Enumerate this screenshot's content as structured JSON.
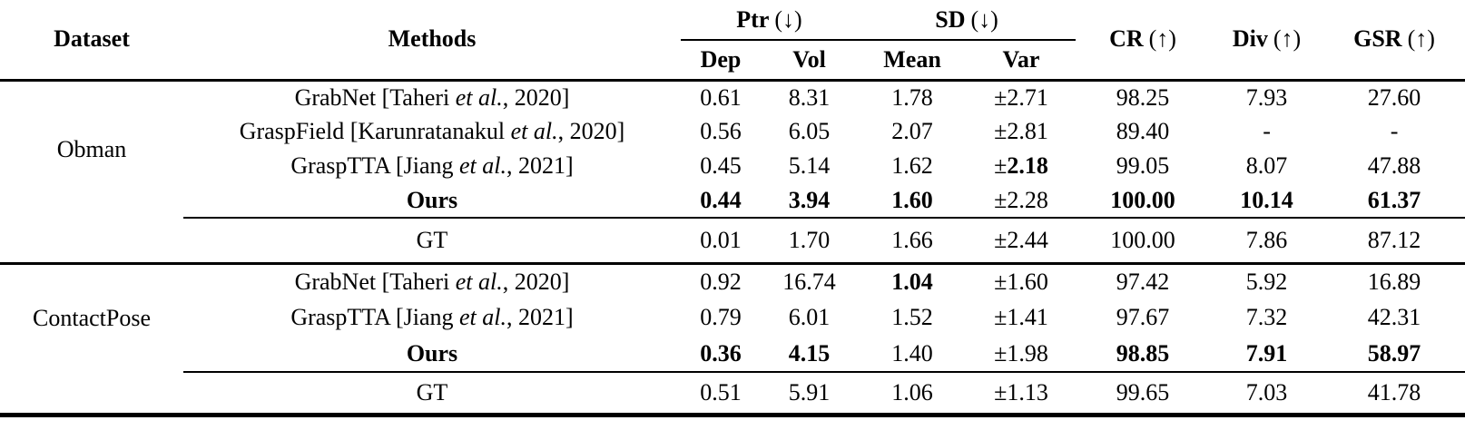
{
  "header": {
    "dataset": "Dataset",
    "methods": "Methods",
    "ptr": {
      "name": "Ptr",
      "dir": "(↓)",
      "sub1": "Dep",
      "sub2": "Vol"
    },
    "sd": {
      "name": "SD",
      "dir": "(↓)",
      "sub1": "Mean",
      "sub2": "Var"
    },
    "cr": {
      "name": "CR",
      "dir": "(↑)"
    },
    "div": {
      "name": "Div",
      "dir": "(↑)"
    },
    "gsr": {
      "name": "GSR",
      "dir": "(↑)"
    }
  },
  "sections": [
    {
      "dataset": "Obman",
      "rows": [
        {
          "m_pre": "GrabNet [Taheri ",
          "m_it": "et al.",
          "m_post": ", 2020]",
          "dep": "0.61",
          "vol": "8.31",
          "mean": "1.78",
          "var_sign": "±",
          "var": "2.71",
          "cr": "98.25",
          "div": "7.93",
          "gsr": "27.60"
        },
        {
          "m_pre": "GraspField [Karunratanakul ",
          "m_it": "et al.",
          "m_post": ", 2020]",
          "dep": "0.56",
          "vol": "6.05",
          "mean": "2.07",
          "var_sign": "±",
          "var": "2.81",
          "cr": "89.40",
          "div": "-",
          "gsr": "-"
        },
        {
          "m_pre": "GraspTTA [Jiang ",
          "m_it": "et al.",
          "m_post": ", 2021]",
          "dep": "0.45",
          "vol": "5.14",
          "mean": "1.62",
          "var_sign": "±",
          "var": "2.18",
          "cr": "99.05",
          "div": "8.07",
          "gsr": "47.88"
        },
        {
          "m_pre": "Ours",
          "m_it": "",
          "m_post": "",
          "dep": "0.44",
          "vol": "3.94",
          "mean": "1.60",
          "var_sign": "±",
          "var": "2.28",
          "cr": "100.00",
          "div": "10.14",
          "gsr": "61.37"
        }
      ],
      "gt": {
        "label": "GT",
        "dep": "0.01",
        "vol": "1.70",
        "mean": "1.66",
        "var_sign": "±",
        "var": "2.44",
        "cr": "100.00",
        "div": "7.86",
        "gsr": "87.12"
      }
    },
    {
      "dataset": "ContactPose",
      "rows": [
        {
          "m_pre": "GrabNet [Taheri ",
          "m_it": "et al.",
          "m_post": ", 2020]",
          "dep": "0.92",
          "vol": "16.74",
          "mean": "1.04",
          "var_sign": "±",
          "var": "1.60",
          "cr": "97.42",
          "div": "5.92",
          "gsr": "16.89"
        },
        {
          "m_pre": "GraspTTA [Jiang ",
          "m_it": "et al.",
          "m_post": ", 2021]",
          "dep": "0.79",
          "vol": "6.01",
          "mean": "1.52",
          "var_sign": "±",
          "var": "1.41",
          "cr": "97.67",
          "div": "7.32",
          "gsr": "42.31"
        },
        {
          "m_pre": "Ours",
          "m_it": "",
          "m_post": "",
          "dep": "0.36",
          "vol": "4.15",
          "mean": "1.40",
          "var_sign": "±",
          "var": "1.98",
          "cr": "98.85",
          "div": "7.91",
          "gsr": "58.97"
        }
      ],
      "gt": {
        "label": "GT",
        "dep": "0.51",
        "vol": "5.91",
        "mean": "1.06",
        "var_sign": "±",
        "var": "1.13",
        "cr": "99.65",
        "div": "7.03",
        "gsr": "41.78"
      }
    }
  ]
}
